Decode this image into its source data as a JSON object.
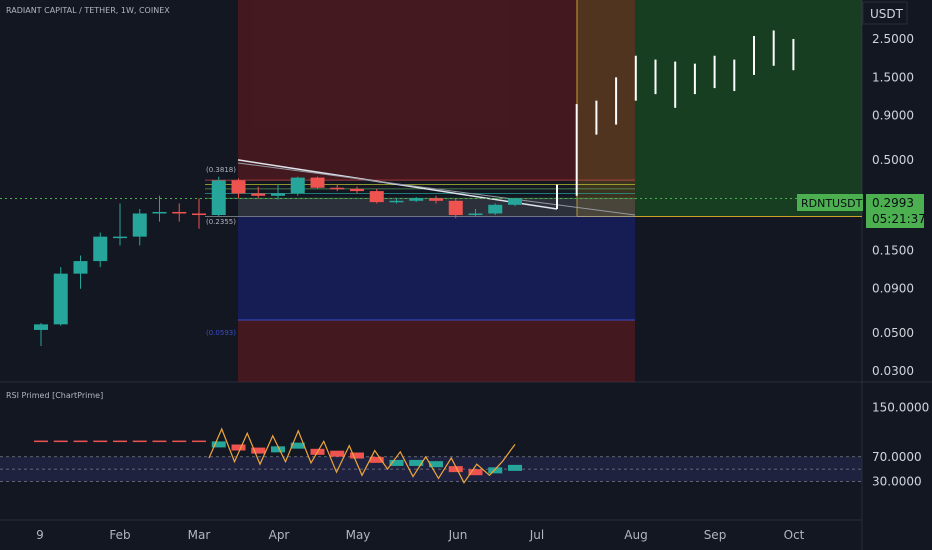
{
  "header": {
    "title": "RADIANT CAPITAL / TETHER, 1W, COINEX"
  },
  "price_axis": {
    "unit": "USDT",
    "ticks": [
      "2.5000",
      "1.5000",
      "0.9000",
      "0.5000",
      "0.1500",
      "0.0900",
      "0.0500",
      "0.0300"
    ],
    "tick_values": [
      2.5,
      1.5,
      0.9,
      0.5,
      0.15,
      0.09,
      0.05,
      0.03
    ],
    "scale": "log"
  },
  "last_price": {
    "symbol": "RDNTUSDT",
    "value": "0.2993",
    "countdown": "05:21:37"
  },
  "time_axis": {
    "ticks": [
      "9",
      "Feb",
      "Mar",
      "Apr",
      "May",
      "Jun",
      "Jul",
      "Aug",
      "Sep",
      "Oct"
    ]
  },
  "fib_labels": {
    "top": "(0.3818)",
    "bottom": "(0.2355)",
    "low": "(0.0593)"
  },
  "rsi": {
    "title": "RSI Primed [ChartPrime]",
    "ticks": [
      "150.0000",
      "70.0000",
      "30.0000"
    ],
    "tick_values": [
      150,
      70,
      30
    ]
  },
  "colors": {
    "background": "#131722",
    "bull": "#26a69a",
    "bear": "#ef5350",
    "rsi_line": "#f0a63a",
    "target_zone": "#1b5e20",
    "stop_zone": "#7f1d1d",
    "label_green": "#4caf50"
  },
  "chart_data": {
    "type": "candlestick",
    "yscale": "log",
    "ylim": [
      0.026,
      4.2
    ],
    "candles": [
      {
        "t": "Jan-W2",
        "o": 0.052,
        "h": 0.057,
        "l": 0.042,
        "c": 0.056
      },
      {
        "t": "Jan-W3",
        "o": 0.056,
        "h": 0.12,
        "l": 0.055,
        "c": 0.11
      },
      {
        "t": "Jan-W4",
        "o": 0.11,
        "h": 0.14,
        "l": 0.09,
        "c": 0.13
      },
      {
        "t": "Jan-W5",
        "o": 0.13,
        "h": 0.19,
        "l": 0.12,
        "c": 0.18
      },
      {
        "t": "Feb-W1",
        "o": 0.18,
        "h": 0.28,
        "l": 0.16,
        "c": 0.18
      },
      {
        "t": "Feb-W2",
        "o": 0.18,
        "h": 0.26,
        "l": 0.16,
        "c": 0.245
      },
      {
        "t": "Feb-W3",
        "o": 0.245,
        "h": 0.31,
        "l": 0.22,
        "c": 0.25
      },
      {
        "t": "Feb-W4",
        "o": 0.25,
        "h": 0.28,
        "l": 0.22,
        "c": 0.245
      },
      {
        "t": "Mar-W1",
        "o": 0.245,
        "h": 0.3,
        "l": 0.2,
        "c": 0.24
      },
      {
        "t": "Mar-W2",
        "o": 0.24,
        "h": 0.4,
        "l": 0.235,
        "c": 0.38
      },
      {
        "t": "Mar-W3",
        "o": 0.38,
        "h": 0.39,
        "l": 0.3,
        "c": 0.32
      },
      {
        "t": "Mar-W4",
        "o": 0.32,
        "h": 0.35,
        "l": 0.3,
        "c": 0.31
      },
      {
        "t": "Apr-W1",
        "o": 0.31,
        "h": 0.36,
        "l": 0.295,
        "c": 0.32
      },
      {
        "t": "Apr-W2",
        "o": 0.32,
        "h": 0.4,
        "l": 0.31,
        "c": 0.395
      },
      {
        "t": "Apr-W3",
        "o": 0.395,
        "h": 0.4,
        "l": 0.34,
        "c": 0.345
      },
      {
        "t": "Apr-W4",
        "o": 0.345,
        "h": 0.36,
        "l": 0.33,
        "c": 0.34
      },
      {
        "t": "May-W1",
        "o": 0.34,
        "h": 0.35,
        "l": 0.32,
        "c": 0.33
      },
      {
        "t": "May-W2",
        "o": 0.33,
        "h": 0.34,
        "l": 0.28,
        "c": 0.285
      },
      {
        "t": "May-W3",
        "o": 0.285,
        "h": 0.3,
        "l": 0.28,
        "c": 0.29
      },
      {
        "t": "May-W4",
        "o": 0.29,
        "h": 0.305,
        "l": 0.285,
        "c": 0.3
      },
      {
        "t": "Jun-W1",
        "o": 0.3,
        "h": 0.31,
        "l": 0.28,
        "c": 0.29
      },
      {
        "t": "Jun-W2",
        "o": 0.29,
        "h": 0.3,
        "l": 0.23,
        "c": 0.24
      },
      {
        "t": "Jun-W3",
        "o": 0.24,
        "h": 0.26,
        "l": 0.235,
        "c": 0.245
      },
      {
        "t": "Jun-W4",
        "o": 0.245,
        "h": 0.28,
        "l": 0.24,
        "c": 0.275
      },
      {
        "t": "Jul-W1",
        "o": 0.275,
        "h": 0.3,
        "l": 0.27,
        "c": 0.2993
      }
    ],
    "projection": [
      {
        "t": "Jul-W2",
        "h": 0.36,
        "l": 0.26
      },
      {
        "t": "Jul-W3",
        "h": 1.05,
        "l": 0.31
      },
      {
        "t": "Jul-W4",
        "h": 1.1,
        "l": 0.7
      },
      {
        "t": "Aug-W1",
        "h": 1.5,
        "l": 0.8
      },
      {
        "t": "Aug-W2",
        "h": 2.0,
        "l": 1.1
      },
      {
        "t": "Aug-W3",
        "h": 1.9,
        "l": 1.2
      },
      {
        "t": "Aug-W4",
        "h": 1.85,
        "l": 1.0
      },
      {
        "t": "Aug-W5",
        "h": 1.8,
        "l": 1.2
      },
      {
        "t": "Sep-W1",
        "h": 2.0,
        "l": 1.3
      },
      {
        "t": "Sep-W2",
        "h": 1.9,
        "l": 1.25
      },
      {
        "t": "Sep-W3",
        "h": 2.6,
        "l": 1.55
      },
      {
        "t": "Sep-W4",
        "h": 2.8,
        "l": 1.75
      },
      {
        "t": "Oct-W1",
        "h": 2.5,
        "l": 1.65
      }
    ],
    "fib_levels": [
      0.3818,
      0.36,
      0.34,
      0.32,
      0.3,
      0.2355,
      0.0593
    ],
    "target_top": 4.2,
    "target_bottom": 0.2355,
    "entry": 0.3818,
    "stop_lower_value": 0.0593,
    "rsi_line": [
      68,
      115,
      62,
      108,
      58,
      104,
      62,
      112,
      60,
      95,
      45,
      88,
      40,
      80,
      50,
      78,
      38,
      70,
      35,
      68,
      28,
      58,
      40,
      62,
      90
    ],
    "rsi_blocks": [
      {
        "t": "Mar-W2",
        "v": 90,
        "c": "bull"
      },
      {
        "t": "Mar-W3",
        "v": 85,
        "c": "bear"
      },
      {
        "t": "Mar-W4",
        "v": 80,
        "c": "bear"
      },
      {
        "t": "Apr-W1",
        "v": 82,
        "c": "bull"
      },
      {
        "t": "Apr-W2",
        "v": 88,
        "c": "bull"
      },
      {
        "t": "Apr-W3",
        "v": 78,
        "c": "bear"
      },
      {
        "t": "Apr-W4",
        "v": 75,
        "c": "bear"
      },
      {
        "t": "May-W1",
        "v": 72,
        "c": "bear"
      },
      {
        "t": "May-W2",
        "v": 65,
        "c": "bear"
      },
      {
        "t": "May-W3",
        "v": 60,
        "c": "bull"
      },
      {
        "t": "May-W4",
        "v": 60,
        "c": "bull"
      },
      {
        "t": "Jun-W1",
        "v": 58,
        "c": "bull"
      },
      {
        "t": "Jun-W2",
        "v": 50,
        "c": "bear"
      },
      {
        "t": "Jun-W3",
        "v": 45,
        "c": "bear"
      },
      {
        "t": "Jun-W4",
        "v": 48,
        "c": "bull"
      },
      {
        "t": "Jul-W1",
        "v": 52,
        "c": "bull"
      }
    ]
  }
}
